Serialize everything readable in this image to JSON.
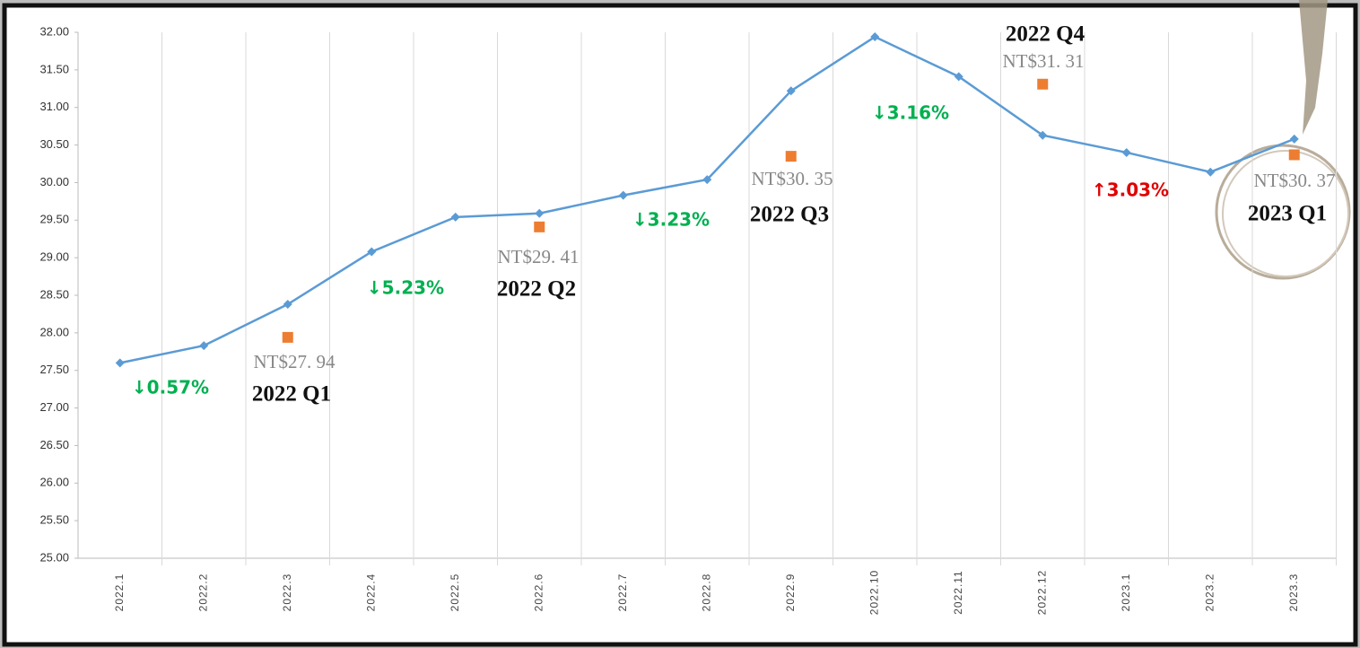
{
  "chart_data": {
    "type": "line",
    "categories": [
      "2022.1",
      "2022.2",
      "2022.3",
      "2022.4",
      "2022.5",
      "2022.6",
      "2022.7",
      "2022.8",
      "2022.9",
      "2022.10",
      "2022.11",
      "2022.12",
      "2023.1",
      "2023.2",
      "2023.3"
    ],
    "values": [
      27.6,
      27.83,
      28.38,
      29.08,
      29.54,
      29.59,
      29.83,
      30.04,
      31.22,
      31.94,
      31.41,
      30.63,
      30.4,
      30.14,
      30.58
    ],
    "color": "#5b9bd5",
    "quarterly": {
      "color": "#ed7d31",
      "values": [
        null,
        null,
        27.94,
        null,
        null,
        29.41,
        null,
        null,
        30.35,
        null,
        null,
        31.31,
        null,
        null,
        30.37
      ],
      "value_labels": [
        null,
        null,
        "NT$27. 94",
        null,
        null,
        "NT$29. 41",
        null,
        null,
        "NT$30. 35",
        null,
        null,
        "NT$31. 31",
        null,
        null,
        "NT$30. 37"
      ],
      "labels": [
        null,
        null,
        "2022 Q1",
        null,
        null,
        "2022 Q2",
        null,
        null,
        "2022 Q3",
        null,
        null,
        "2022 Q4",
        null,
        null,
        "2023 Q1"
      ]
    },
    "annotations": [
      {
        "text": "↓0.57%",
        "color": "#00b050"
      },
      {
        "text": "↓5.23%",
        "color": "#00b050"
      },
      {
        "text": "↓3.23%",
        "color": "#00b050"
      },
      {
        "text": "↓3.16%",
        "color": "#00b050"
      },
      {
        "text": "↑3.03%",
        "color": "#e00000"
      }
    ],
    "ylim": [
      25,
      32
    ],
    "yticks": [
      {
        "value": 25,
        "label": "25.00"
      },
      {
        "value": 25.5,
        "label": "25.50"
      },
      {
        "value": 26,
        "label": "26.00"
      },
      {
        "value": 26.5,
        "label": "26.50"
      },
      {
        "value": 27,
        "label": "27.00"
      },
      {
        "value": 27.5,
        "label": "27.50"
      },
      {
        "value": 28,
        "label": "28.00"
      },
      {
        "value": 28.5,
        "label": "28.50"
      },
      {
        "value": 29,
        "label": "29.00"
      },
      {
        "value": 29.5,
        "label": "29.50"
      },
      {
        "value": 30,
        "label": "30.00"
      },
      {
        "value": 30.5,
        "label": "30.50"
      },
      {
        "value": 31,
        "label": "31.00"
      },
      {
        "value": 31.5,
        "label": "31.50"
      },
      {
        "value": 32,
        "label": "32.00"
      }
    ],
    "grid": "vertical"
  }
}
